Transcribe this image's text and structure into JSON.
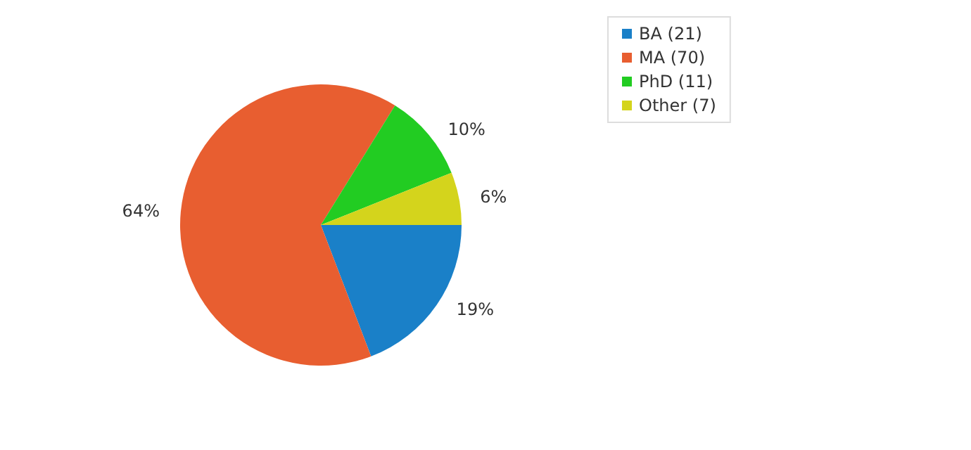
{
  "chart_data": {
    "type": "pie",
    "categories": [
      "BA (21)",
      "MA (70)",
      "PhD (11)",
      "Other (7)"
    ],
    "values": [
      19,
      64,
      10,
      6
    ],
    "colors": [
      "#1a80c8",
      "#e85e30",
      "#22cc22",
      "#d4d41c"
    ],
    "value_labels": [
      "19%",
      "64%",
      "10%",
      "6%"
    ],
    "legend": "top right"
  }
}
